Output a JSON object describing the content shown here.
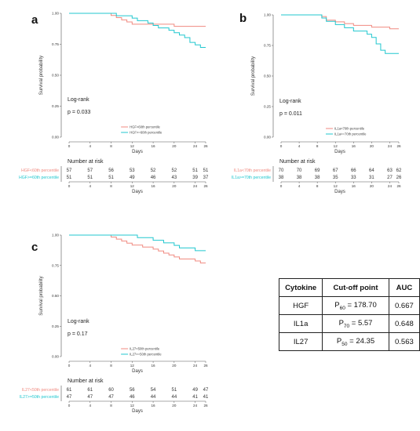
{
  "colors": {
    "low": "#f08a80",
    "high": "#21c7cf",
    "axis": "#555555"
  },
  "chart_data": [
    {
      "type": "line",
      "panel": "a",
      "xlabel": "Days",
      "ylabel": "Survival probability",
      "xlim": [
        0,
        26
      ],
      "ylim": [
        0,
        1
      ],
      "xticks": [
        "0",
        "4",
        "8",
        "12",
        "16",
        "20",
        "24",
        "26"
      ],
      "xtick_values": [
        0,
        4,
        8,
        12,
        16,
        20,
        24,
        26
      ],
      "yticks": [
        "0.00",
        "0.25",
        "0.50",
        "0.75",
        "1.00"
      ],
      "ytick_values": [
        0,
        0.25,
        0.5,
        0.75,
        1
      ],
      "test_label": "Log-rank",
      "p_value": "p = 0.033",
      "series": [
        {
          "name": "HGF<60th percentile",
          "color": "#f08a80",
          "x": [
            0,
            7,
            8,
            9,
            10,
            11,
            12,
            14,
            16,
            17,
            19,
            20,
            26
          ],
          "y": [
            1,
            1,
            0.983,
            0.965,
            0.947,
            0.93,
            0.912,
            0.912,
            0.912,
            0.912,
            0.912,
            0.895,
            0.895
          ]
        },
        {
          "name": "HGF>=60th percentile",
          "color": "#21c7cf",
          "x": [
            0,
            8,
            9,
            12,
            13,
            15,
            16,
            17,
            19,
            20,
            21,
            22,
            23,
            24,
            25,
            26
          ],
          "y": [
            1,
            1,
            0.98,
            0.961,
            0.941,
            0.922,
            0.902,
            0.882,
            0.863,
            0.843,
            0.824,
            0.804,
            0.765,
            0.745,
            0.725,
            0.725
          ]
        }
      ],
      "risk_title": "Number at risk",
      "risk_rows": [
        {
          "label": "HGF<60th percentile",
          "color": "#f08a80",
          "values": [
            "57",
            "57",
            "56",
            "53",
            "52",
            "52",
            "51",
            "51"
          ]
        },
        {
          "label": "HGF>=60th percentile",
          "color": "#21c7cf",
          "values": [
            "51",
            "51",
            "51",
            "49",
            "46",
            "43",
            "39",
            "37"
          ]
        }
      ]
    },
    {
      "type": "line",
      "panel": "b",
      "xlabel": "Days",
      "ylabel": "Survival probability",
      "xlim": [
        0,
        26
      ],
      "ylim": [
        0,
        1
      ],
      "xticks": [
        "0",
        "4",
        "8",
        "12",
        "16",
        "20",
        "24",
        "26"
      ],
      "xtick_values": [
        0,
        4,
        8,
        12,
        16,
        20,
        24,
        26
      ],
      "yticks": [
        "0.00",
        "0.25",
        "0.50",
        "0.75",
        "1.00"
      ],
      "ytick_values": [
        0,
        0.25,
        0.5,
        0.75,
        1
      ],
      "test_label": "Log-rank",
      "p_value": "p = 0.011",
      "series": [
        {
          "name": "IL1a<70th percentile",
          "color": "#f08a80",
          "x": [
            0,
            8,
            9,
            10,
            12,
            14,
            16,
            18,
            20,
            22,
            24,
            26
          ],
          "y": [
            1,
            1,
            0.986,
            0.957,
            0.943,
            0.929,
            0.914,
            0.914,
            0.9,
            0.9,
            0.886,
            0.886
          ]
        },
        {
          "name": "IL1a>=70th percentile",
          "color": "#21c7cf",
          "x": [
            0,
            8,
            9,
            10,
            12,
            14,
            16,
            18,
            19,
            20,
            21,
            22,
            23,
            24,
            26
          ],
          "y": [
            1,
            1,
            0.974,
            0.947,
            0.921,
            0.895,
            0.868,
            0.868,
            0.842,
            0.816,
            0.763,
            0.711,
            0.684,
            0.684,
            0.684
          ]
        }
      ],
      "risk_title": "Number at risk",
      "risk_rows": [
        {
          "label": "IL1a<70th percentile",
          "color": "#f08a80",
          "values": [
            "70",
            "70",
            "69",
            "67",
            "66",
            "64",
            "63",
            "62"
          ]
        },
        {
          "label": "IL1a>=70th percentile",
          "color": "#21c7cf",
          "values": [
            "38",
            "38",
            "38",
            "35",
            "33",
            "31",
            "27",
            "26"
          ]
        }
      ]
    },
    {
      "type": "line",
      "panel": "c",
      "xlabel": "Days",
      "ylabel": "Survival probability",
      "xlim": [
        0,
        26
      ],
      "ylim": [
        0,
        1
      ],
      "xticks": [
        "0",
        "4",
        "8",
        "12",
        "16",
        "20",
        "24",
        "26"
      ],
      "xtick_values": [
        0,
        4,
        8,
        12,
        16,
        20,
        24,
        26
      ],
      "yticks": [
        "0.00",
        "0.25",
        "0.50",
        "0.75",
        "1.00"
      ],
      "ytick_values": [
        0,
        0.25,
        0.5,
        0.75,
        1
      ],
      "test_label": "Log-rank",
      "p_value": "p = 0.17",
      "series": [
        {
          "name": "IL27<50th percentile",
          "color": "#f08a80",
          "x": [
            0,
            7,
            8,
            9,
            10,
            11,
            12,
            14,
            16,
            17,
            18,
            19,
            20,
            21,
            22,
            24,
            25,
            26
          ],
          "y": [
            1,
            1,
            0.984,
            0.967,
            0.951,
            0.934,
            0.918,
            0.902,
            0.885,
            0.869,
            0.852,
            0.836,
            0.82,
            0.803,
            0.803,
            0.787,
            0.77,
            0.77
          ]
        },
        {
          "name": "IL27>=50th percentile",
          "color": "#21c7cf",
          "x": [
            0,
            12,
            13,
            16,
            18,
            20,
            21,
            24,
            26
          ],
          "y": [
            1,
            1,
            0.979,
            0.957,
            0.936,
            0.915,
            0.894,
            0.872,
            0.872
          ]
        }
      ],
      "risk_title": "Number at risk",
      "risk_rows": [
        {
          "label": "IL27<50th percentile",
          "color": "#f08a80",
          "values": [
            "61",
            "61",
            "60",
            "56",
            "54",
            "51",
            "49",
            "47"
          ]
        },
        {
          "label": "IL27>=50th percentile",
          "color": "#21c7cf",
          "values": [
            "47",
            "47",
            "47",
            "46",
            "44",
            "44",
            "41",
            "41"
          ]
        }
      ]
    }
  ],
  "table": {
    "headers": [
      "Cytokine",
      "Cut-off point",
      "AUC"
    ],
    "rows": [
      {
        "cytokine": "HGF",
        "cutoff_prefix": "P",
        "cutoff_sub": "60",
        "cutoff_value": " = 178.70",
        "auc": "0.667"
      },
      {
        "cytokine": "IL1a",
        "cutoff_prefix": "P",
        "cutoff_sub": "70",
        "cutoff_value": " = 5.57",
        "auc": "0.648"
      },
      {
        "cytokine": "IL27",
        "cutoff_prefix": "P",
        "cutoff_sub": "50",
        "cutoff_value": " = 24.35",
        "auc": "0.563"
      }
    ]
  }
}
